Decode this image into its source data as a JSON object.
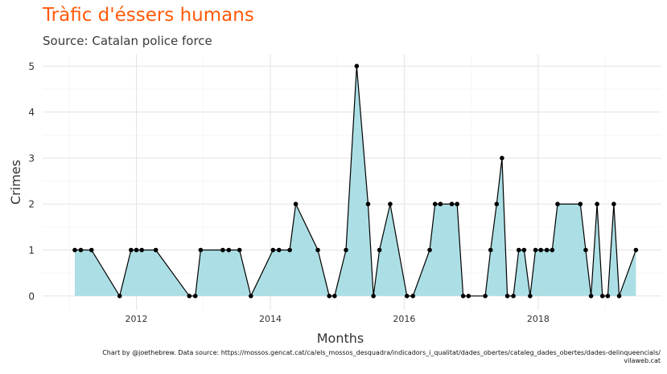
{
  "chart_data": {
    "type": "area",
    "title": "Tràfic d'éssers humans",
    "subtitle": "Source: Catalan police force",
    "xlabel": "Months",
    "ylabel": "Crimes",
    "x_ticks": [
      "2012",
      "2014",
      "2016",
      "2018"
    ],
    "y_ticks": [
      "0",
      "1",
      "2",
      "3",
      "4",
      "5"
    ],
    "xlim": [
      2010.6,
      2019.84
    ],
    "ylim": [
      -0.3,
      5.25
    ],
    "grid": true,
    "caption": [
      "Chart by @joethebrew. Data source: https://mossos.gencat.cat/ca/els_mossos_desquadra/indicadors_i_qualitat/dades_obertes/cataleg_dades_obertes/dades-delinqueencials/",
      "vilaweb.cat"
    ],
    "colors": {
      "fill": "#a8dde4",
      "line": "#000000",
      "title": "#ff5a0a"
    },
    "series": [
      {
        "x": [
          2011.08,
          2011.17,
          2011.33,
          2011.75,
          2011.92,
          2012.0,
          2012.08,
          2012.29,
          2012.79,
          2012.88,
          2012.96,
          2013.29,
          2013.38,
          2013.54,
          2013.71,
          2014.04,
          2014.13,
          2014.29,
          2014.38,
          2014.71,
          2014.88,
          2014.96,
          2015.13,
          2015.29,
          2015.46,
          2015.54,
          2015.63,
          2015.79,
          2016.04,
          2016.13,
          2016.38,
          2016.46,
          2016.54,
          2016.71,
          2016.79,
          2016.88,
          2016.96,
          2017.21,
          2017.29,
          2017.38,
          2017.46,
          2017.54,
          2017.63,
          2017.71,
          2017.79,
          2017.88,
          2017.96,
          2018.04,
          2018.13,
          2018.21,
          2018.29,
          2018.63,
          2018.71,
          2018.79,
          2018.88,
          2018.96,
          2019.04,
          2019.13,
          2019.21,
          2019.46
        ],
        "y": [
          1,
          1,
          1,
          0,
          1,
          1,
          1,
          1,
          0,
          0,
          1,
          1,
          1,
          1,
          0,
          1,
          1,
          1,
          2,
          1,
          0,
          0,
          1,
          5,
          2,
          0,
          1,
          2,
          0,
          0,
          1,
          2,
          2,
          2,
          2,
          0,
          0,
          0,
          1,
          2,
          3,
          0,
          0,
          1,
          1,
          0,
          1,
          1,
          1,
          1,
          2,
          2,
          1,
          0,
          2,
          0,
          0,
          2,
          0,
          1
        ]
      }
    ]
  }
}
